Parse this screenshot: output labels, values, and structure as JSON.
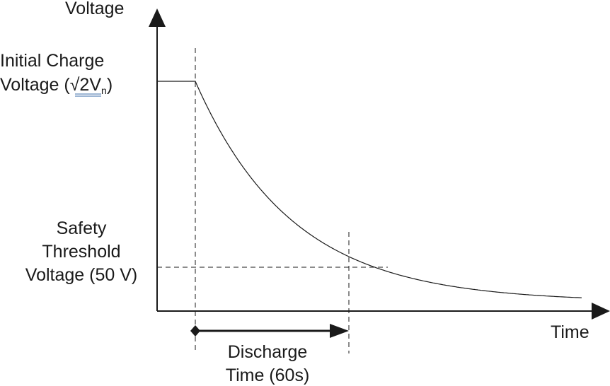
{
  "chart_data": {
    "type": "line",
    "title": "",
    "xlabel": "Time",
    "ylabel": "Voltage",
    "grid": false,
    "annotations": {
      "initial_line1": "Initial Charge",
      "initial_line2_prefix": "Voltage (",
      "initial_sqrt_value": "2V",
      "initial_sub": "n",
      "initial_line2_suffix": ")",
      "safety_line1": "Safety",
      "safety_line2": "Threshold",
      "safety_line3": "Voltage (50 V)",
      "discharge_line1": "Discharge",
      "discharge_line2": "Time (60s)"
    }
  }
}
